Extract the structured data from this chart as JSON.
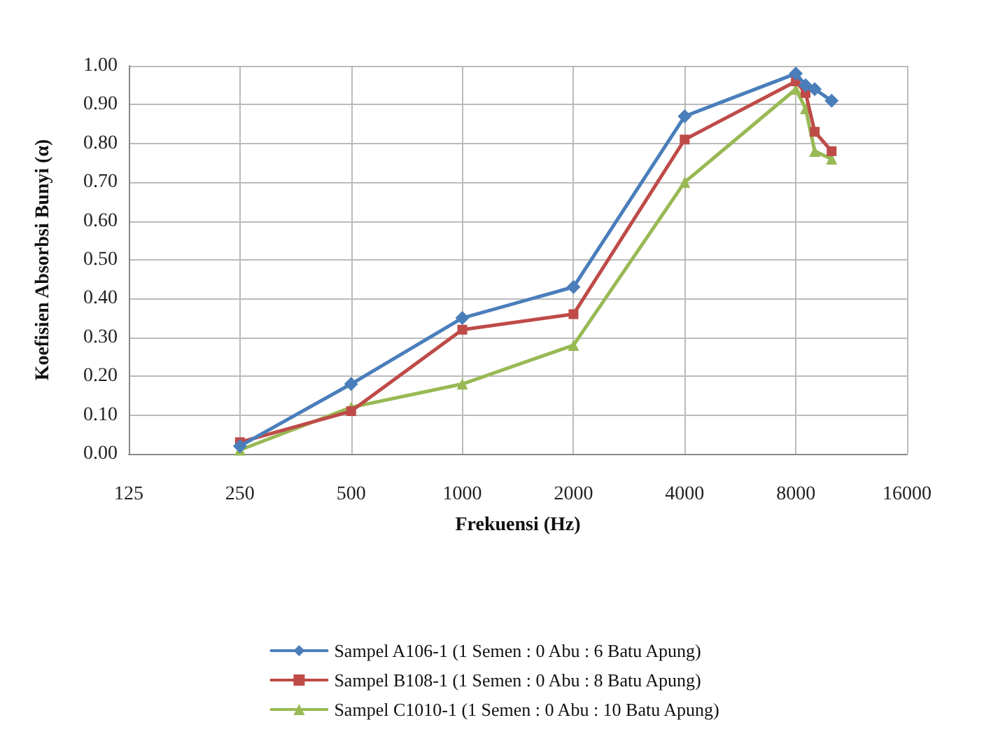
{
  "chart_data": {
    "type": "line",
    "xlabel": "Frekuensi (Hz)",
    "ylabel": "Koefisien Absorbsi Bunyi (α)",
    "x": [
      250,
      500,
      1000,
      2000,
      4000,
      8000,
      8500,
      9000,
      10000
    ],
    "series": [
      {
        "name": "Sampel A106-1 (1 Semen : 0 Abu : 6 Batu Apung)",
        "color": "#4a7ebb",
        "marker": "diamond",
        "values": [
          0.02,
          0.18,
          0.35,
          0.43,
          0.87,
          0.98,
          0.95,
          0.94,
          0.91
        ]
      },
      {
        "name": "Sampel B108-1 (1 Semen : 0 Abu : 8 Batu Apung)",
        "color": "#be4b48",
        "marker": "square",
        "values": [
          0.03,
          0.11,
          0.32,
          0.36,
          0.81,
          0.96,
          0.93,
          0.83,
          0.78
        ]
      },
      {
        "name": "Sampel C1010-1 (1 Semen : 0 Abu : 10 Batu Apung)",
        "color": "#98b954",
        "marker": "triangle",
        "values": [
          0.01,
          0.12,
          0.18,
          0.28,
          0.7,
          0.94,
          0.89,
          0.78,
          0.76
        ]
      }
    ],
    "log": "x",
    "xlim": [
      125,
      16000
    ],
    "xticks": [
      125,
      250,
      500,
      1000,
      2000,
      4000,
      8000,
      16000
    ],
    "ylim": [
      0,
      1
    ],
    "yticks": [
      {
        "value": 0,
        "label": "0.00"
      },
      {
        "value": 0.1,
        "label": "0.10"
      },
      {
        "value": 0.2,
        "label": "0.20"
      },
      {
        "value": 0.3,
        "label": "0.30"
      },
      {
        "value": 0.4,
        "label": "0.40"
      },
      {
        "value": 0.5,
        "label": "0.50"
      },
      {
        "value": 0.6,
        "label": "0.60"
      },
      {
        "value": 0.7,
        "label": "0.70"
      },
      {
        "value": 0.8,
        "label": "0.80"
      },
      {
        "value": 0.9,
        "label": "0.90"
      },
      {
        "value": 1,
        "label": "1.00"
      }
    ],
    "grid": true,
    "legend": "bottom"
  }
}
